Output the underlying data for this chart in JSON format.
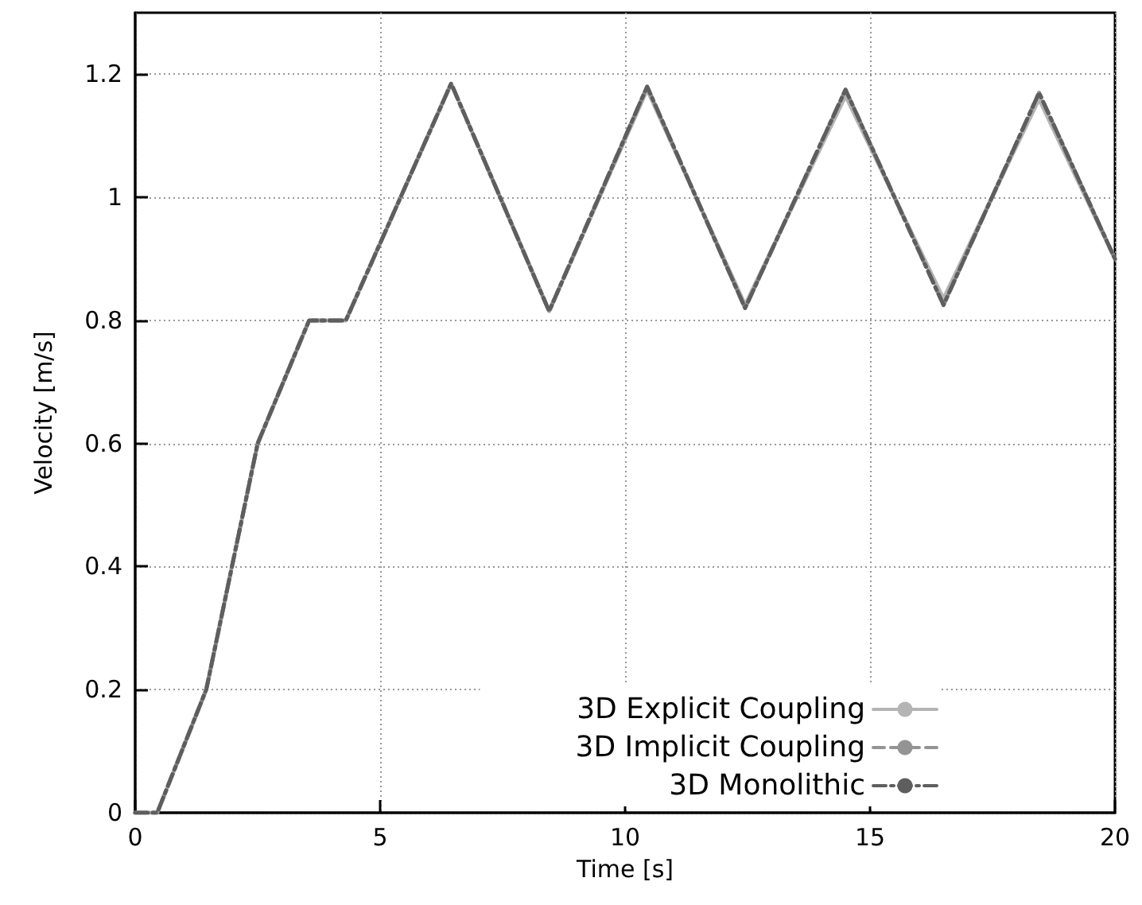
{
  "chart_data": {
    "type": "line",
    "xlabel": "Time [s]",
    "ylabel": "Velocity [m/s]",
    "x": [
      0,
      0.45,
      1.45,
      2.5,
      3.55,
      4.3,
      6.45,
      8.45,
      10.45,
      12.45,
      14.5,
      16.5,
      18.45,
      20
    ],
    "series": [
      {
        "name": "3D Explicit Coupling",
        "color": "#b4b4b4",
        "line_style": "solid",
        "values": [
          0,
          0,
          0.2,
          0.6,
          0.8,
          0.8,
          1.185,
          0.815,
          1.175,
          0.825,
          1.165,
          0.835,
          1.16,
          0.9
        ]
      },
      {
        "name": "3D Implicit Coupling",
        "color": "#949494",
        "line_style": "dashed",
        "values": [
          0,
          0,
          0.2,
          0.6,
          0.8,
          0.8,
          1.185,
          0.815,
          1.18,
          0.82,
          1.175,
          0.825,
          1.17,
          0.9
        ]
      },
      {
        "name": "3D Monolithic",
        "color": "#5e5e5e",
        "line_style": "dashdot",
        "values": [
          0,
          0,
          0.2,
          0.6,
          0.8,
          0.8,
          1.185,
          0.815,
          1.18,
          0.82,
          1.175,
          0.825,
          1.17,
          0.9
        ]
      }
    ],
    "xlim": [
      0,
      20
    ],
    "xticks": [
      0,
      5,
      10,
      15,
      20
    ],
    "ylim": [
      0,
      1.3
    ],
    "yticks": [
      0,
      0.2,
      0.4,
      0.6,
      0.8,
      1,
      1.2
    ],
    "grid": true,
    "legend": "bottom right",
    "marker": "none"
  }
}
